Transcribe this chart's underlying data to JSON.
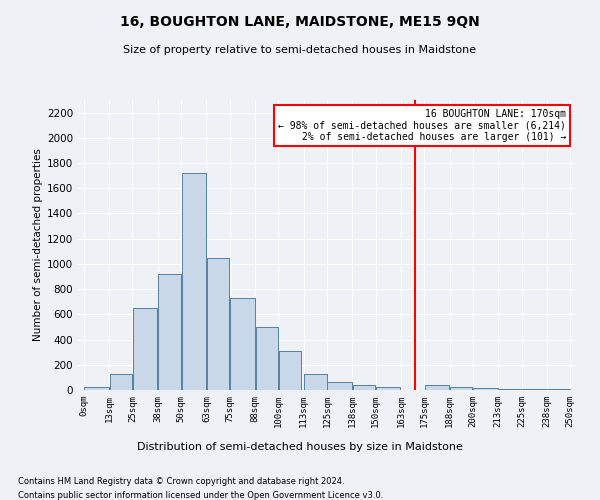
{
  "title": "16, BOUGHTON LANE, MAIDSTONE, ME15 9QN",
  "subtitle": "Size of property relative to semi-detached houses in Maidstone",
  "xlabel": "Distribution of semi-detached houses by size in Maidstone",
  "ylabel": "Number of semi-detached properties",
  "footnote1": "Contains HM Land Registry data © Crown copyright and database right 2024.",
  "footnote2": "Contains public sector information licensed under the Open Government Licence v3.0.",
  "bar_left_edges": [
    0,
    13,
    25,
    38,
    50,
    63,
    75,
    88,
    100,
    113,
    125,
    138,
    150,
    163,
    175,
    188,
    200,
    213,
    225,
    238
  ],
  "bar_widths": [
    13,
    12,
    13,
    12,
    13,
    12,
    13,
    12,
    12,
    12,
    13,
    12,
    13,
    12,
    13,
    12,
    13,
    12,
    13,
    12
  ],
  "bar_heights": [
    20,
    130,
    650,
    920,
    1720,
    1050,
    730,
    500,
    310,
    130,
    65,
    40,
    20,
    0,
    40,
    25,
    15,
    10,
    5,
    10
  ],
  "bar_color": "#c8d8e8",
  "bar_edge_color": "#5580a0",
  "tick_labels": [
    "0sqm",
    "13sqm",
    "25sqm",
    "38sqm",
    "50sqm",
    "63sqm",
    "75sqm",
    "88sqm",
    "100sqm",
    "113sqm",
    "125sqm",
    "138sqm",
    "150sqm",
    "163sqm",
    "175sqm",
    "188sqm",
    "200sqm",
    "213sqm",
    "225sqm",
    "238sqm",
    "250sqm"
  ],
  "vline_x": 170,
  "vline_color": "red",
  "ylim": [
    0,
    2300
  ],
  "yticks": [
    0,
    200,
    400,
    600,
    800,
    1000,
    1200,
    1400,
    1600,
    1800,
    2000,
    2200
  ],
  "bg_color": "#eef2f7",
  "annotation_title": "16 BOUGHTON LANE: 170sqm",
  "annotation_line1": "← 98% of semi-detached houses are smaller (6,214)",
  "annotation_line2": "2% of semi-detached houses are larger (101) →",
  "annotation_box_color": "#ffffff",
  "annotation_edge_color": "red",
  "xlim": [
    -3,
    253
  ]
}
